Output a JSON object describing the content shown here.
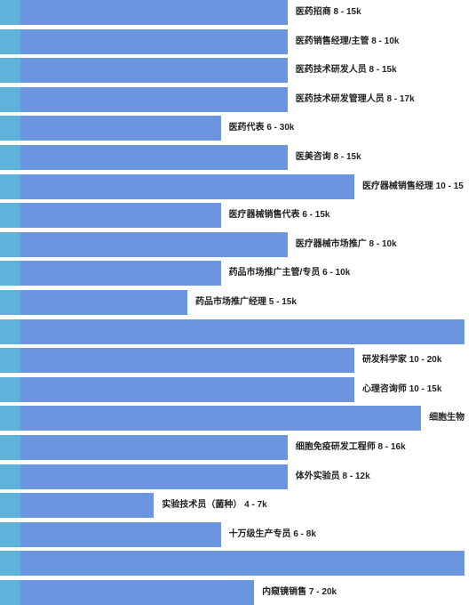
{
  "colors": {
    "bar": "#6b96df",
    "stub": "#5fb2d9",
    "text": "#222222"
  },
  "chart_data": {
    "type": "bar",
    "orientation": "horizontal",
    "categories": [
      "医药招商",
      "医药销售经理/主管",
      "医药技术研发人员",
      "医药技术研发管理人员",
      "医药代表",
      "医美咨询",
      "医疗器械销售经理",
      "医疗器械销售代表",
      "医疗器械市场推广",
      "药品市场推广主管/专员",
      "药品市场推广经理",
      "",
      "研发科学家",
      "心理咨询师",
      "细胞生物",
      "细胞免疫研发工程师",
      "体外实验员",
      "实验技术员（菌种）",
      "十万级生产专员",
      "",
      "内窥镜销售"
    ],
    "labels": [
      "医药招商 8 - 15k",
      "医药销售经理/主管 8 - 10k",
      "医药技术研发人员 8 - 15k",
      "医药技术研发管理人员 8 - 17k",
      "医药代表 6 - 30k",
      "医美咨询 8 - 15k",
      "医疗器械销售经理 10 - 15",
      "医疗器械销售代表 6 - 15k",
      "医疗器械市场推广 8 - 10k",
      "药品市场推广主管/专员 6 - 10k",
      "药品市场推广经理 5 - 15k",
      "",
      "研发科学家 10 - 20k",
      "心理咨询师 10 - 15k",
      "细胞生物",
      "细胞免疫研发工程师 8 - 16k",
      "体外实验员 8 - 12k",
      "实验技术员（菌种） 4 - 7k",
      "十万级生产专员 6 - 8k",
      "",
      "内窥镜销售 7 - 20k"
    ],
    "values": [
      8,
      8,
      8,
      8,
      6,
      8,
      10,
      6,
      8,
      6,
      5,
      13.3,
      10,
      10,
      12,
      8,
      8,
      4,
      6,
      13.3,
      7
    ],
    "xlim": [
      0,
      13.3
    ]
  }
}
